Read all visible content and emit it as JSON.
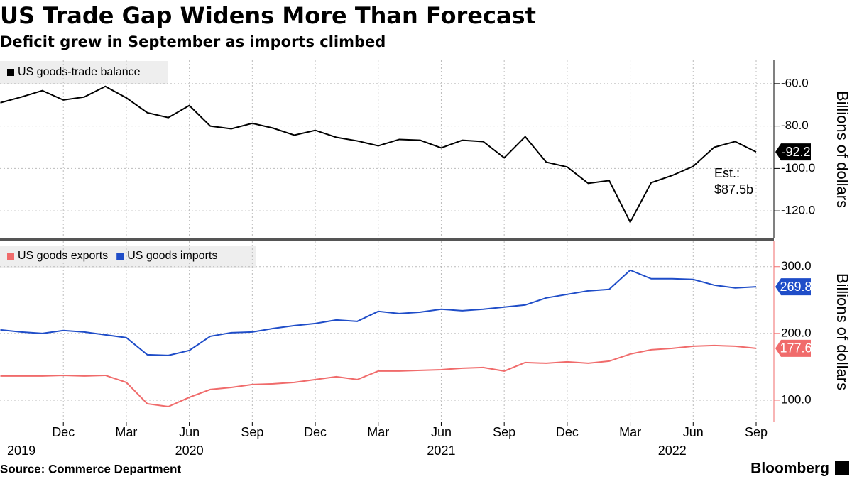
{
  "chart_data": [
    {
      "type": "line",
      "title": "US Trade Gap Widens More Than Forecast",
      "subtitle": "Deficit grew in September as imports climbed",
      "x": [
        "2019-09",
        "2019-10",
        "2019-11",
        "2019-12",
        "2020-01",
        "2020-02",
        "2020-03",
        "2020-04",
        "2020-05",
        "2020-06",
        "2020-07",
        "2020-08",
        "2020-09",
        "2020-10",
        "2020-11",
        "2020-12",
        "2021-01",
        "2021-02",
        "2021-03",
        "2021-04",
        "2021-05",
        "2021-06",
        "2021-07",
        "2021-08",
        "2021-09",
        "2021-10",
        "2021-11",
        "2021-12",
        "2022-01",
        "2022-02",
        "2022-03",
        "2022-04",
        "2022-05",
        "2022-06",
        "2022-07",
        "2022-08",
        "2022-09"
      ],
      "series": [
        {
          "name": "US goods-trade balance",
          "color": "#000000",
          "values": [
            -69.0,
            -66.3,
            -63.3,
            -67.7,
            -66.3,
            -61.3,
            -66.7,
            -73.7,
            -76.0,
            -70.3,
            -80.0,
            -81.3,
            -78.7,
            -81.0,
            -84.3,
            -82.0,
            -85.3,
            -87.0,
            -89.3,
            -86.3,
            -86.7,
            -90.3,
            -86.7,
            -87.3,
            -95.0,
            -85.0,
            -97.0,
            -99.3,
            -107.0,
            -105.7,
            -125.3,
            -106.7,
            -103.3,
            -99.0,
            -90.0,
            -87.3,
            -92.2
          ]
        }
      ],
      "ylim": [
        -133,
        -49
      ],
      "yticks": [
        {
          "value": -60,
          "label": "-60.0"
        },
        {
          "value": -80,
          "label": "-80.0"
        },
        {
          "value": -100,
          "label": "-100.0"
        },
        {
          "value": -120,
          "label": "-120.0"
        }
      ],
      "ylabel": "Billions of dollars",
      "grid": true,
      "annotation_lines": [
        "Est.:",
        "$87.5b"
      ],
      "annotation_color": "#e8a33a"
    },
    {
      "type": "line",
      "x": [
        "2019-09",
        "2019-10",
        "2019-11",
        "2019-12",
        "2020-01",
        "2020-02",
        "2020-03",
        "2020-04",
        "2020-05",
        "2020-06",
        "2020-07",
        "2020-08",
        "2020-09",
        "2020-10",
        "2020-11",
        "2020-12",
        "2021-01",
        "2021-02",
        "2021-03",
        "2021-04",
        "2021-05",
        "2021-06",
        "2021-07",
        "2021-08",
        "2021-09",
        "2021-10",
        "2021-11",
        "2021-12",
        "2022-01",
        "2022-02",
        "2022-03",
        "2022-04",
        "2022-05",
        "2022-06",
        "2022-07",
        "2022-08",
        "2022-09"
      ],
      "series": [
        {
          "name": "US goods exports",
          "color": "#f06b6b",
          "values": [
            136.2,
            136.2,
            136.2,
            137.2,
            136.2,
            137.2,
            126.6,
            94.7,
            90.4,
            104.3,
            116.0,
            119.1,
            123.4,
            124.5,
            126.6,
            130.9,
            135.1,
            130.9,
            143.6,
            143.6,
            144.7,
            145.7,
            147.9,
            148.9,
            143.6,
            156.4,
            155.3,
            157.4,
            155.3,
            158.5,
            169.1,
            175.5,
            177.7,
            180.9,
            181.9,
            180.9,
            177.6
          ]
        },
        {
          "name": "US goods imports",
          "color": "#1f4dc8",
          "values": [
            205.3,
            202.1,
            200.0,
            204.3,
            202.1,
            197.9,
            193.6,
            168.1,
            167.0,
            174.5,
            195.7,
            201.1,
            202.1,
            207.4,
            211.7,
            214.9,
            220.2,
            218.1,
            233.0,
            229.8,
            231.9,
            236.2,
            234.0,
            236.2,
            239.4,
            242.6,
            253.2,
            258.5,
            263.8,
            266.0,
            294.7,
            281.9,
            281.9,
            280.9,
            272.3,
            268.1,
            269.8
          ]
        }
      ],
      "ylim": [
        67,
        338
      ],
      "yticks": [
        {
          "value": 100,
          "label": "100.0"
        },
        {
          "value": 200,
          "label": "200.0"
        },
        {
          "value": 300,
          "label": "300.0"
        }
      ],
      "ylabel": "Billions of dollars",
      "grid": true,
      "xticks": [
        {
          "value": "2019-12",
          "label": "Dec"
        },
        {
          "value": "2020-03",
          "label": "Mar"
        },
        {
          "value": "2020-06",
          "label": "Jun"
        },
        {
          "value": "2020-09",
          "label": "Sep"
        },
        {
          "value": "2020-12",
          "label": "Dec"
        },
        {
          "value": "2021-03",
          "label": "Mar"
        },
        {
          "value": "2021-06",
          "label": "Jun"
        },
        {
          "value": "2021-09",
          "label": "Sep"
        },
        {
          "value": "2021-12",
          "label": "Dec"
        },
        {
          "value": "2022-03",
          "label": "Mar"
        },
        {
          "value": "2022-06",
          "label": "Jun"
        },
        {
          "value": "2022-09",
          "label": "Sep"
        }
      ],
      "year_labels": [
        {
          "value": "2019-10",
          "label": "2019"
        },
        {
          "value": "2020-06",
          "label": "2020"
        },
        {
          "value": "2021-06",
          "label": "2021"
        },
        {
          "value": "2022-05",
          "label": "2022"
        }
      ],
      "source": "Source: Commerce Department",
      "brand": "Bloomberg"
    }
  ]
}
